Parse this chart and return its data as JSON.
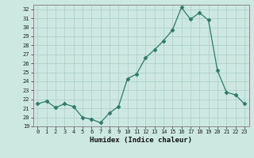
{
  "x": [
    0,
    1,
    2,
    3,
    4,
    5,
    6,
    7,
    8,
    9,
    10,
    11,
    12,
    13,
    14,
    15,
    16,
    17,
    18,
    19,
    20,
    21,
    22,
    23
  ],
  "y": [
    21.5,
    21.8,
    21.1,
    21.5,
    21.2,
    20.0,
    19.8,
    19.4,
    20.5,
    21.2,
    24.3,
    24.8,
    26.6,
    27.5,
    28.5,
    29.7,
    32.2,
    30.9,
    31.6,
    30.8,
    25.2,
    22.8,
    22.5,
    21.5
  ],
  "line_color": "#2d7a6a",
  "marker": "D",
  "marker_size": 2.5,
  "bg_color": "#cce8e0",
  "grid_color": "#aacec8",
  "xlabel": "Humidex (Indice chaleur)",
  "ylim": [
    19,
    32.5
  ],
  "xlim": [
    -0.5,
    23.5
  ],
  "yticks": [
    19,
    20,
    21,
    22,
    23,
    24,
    25,
    26,
    27,
    28,
    29,
    30,
    31,
    32
  ],
  "xticks": [
    0,
    1,
    2,
    3,
    4,
    5,
    6,
    7,
    8,
    9,
    10,
    11,
    12,
    13,
    14,
    15,
    16,
    17,
    18,
    19,
    20,
    21,
    22,
    23
  ]
}
